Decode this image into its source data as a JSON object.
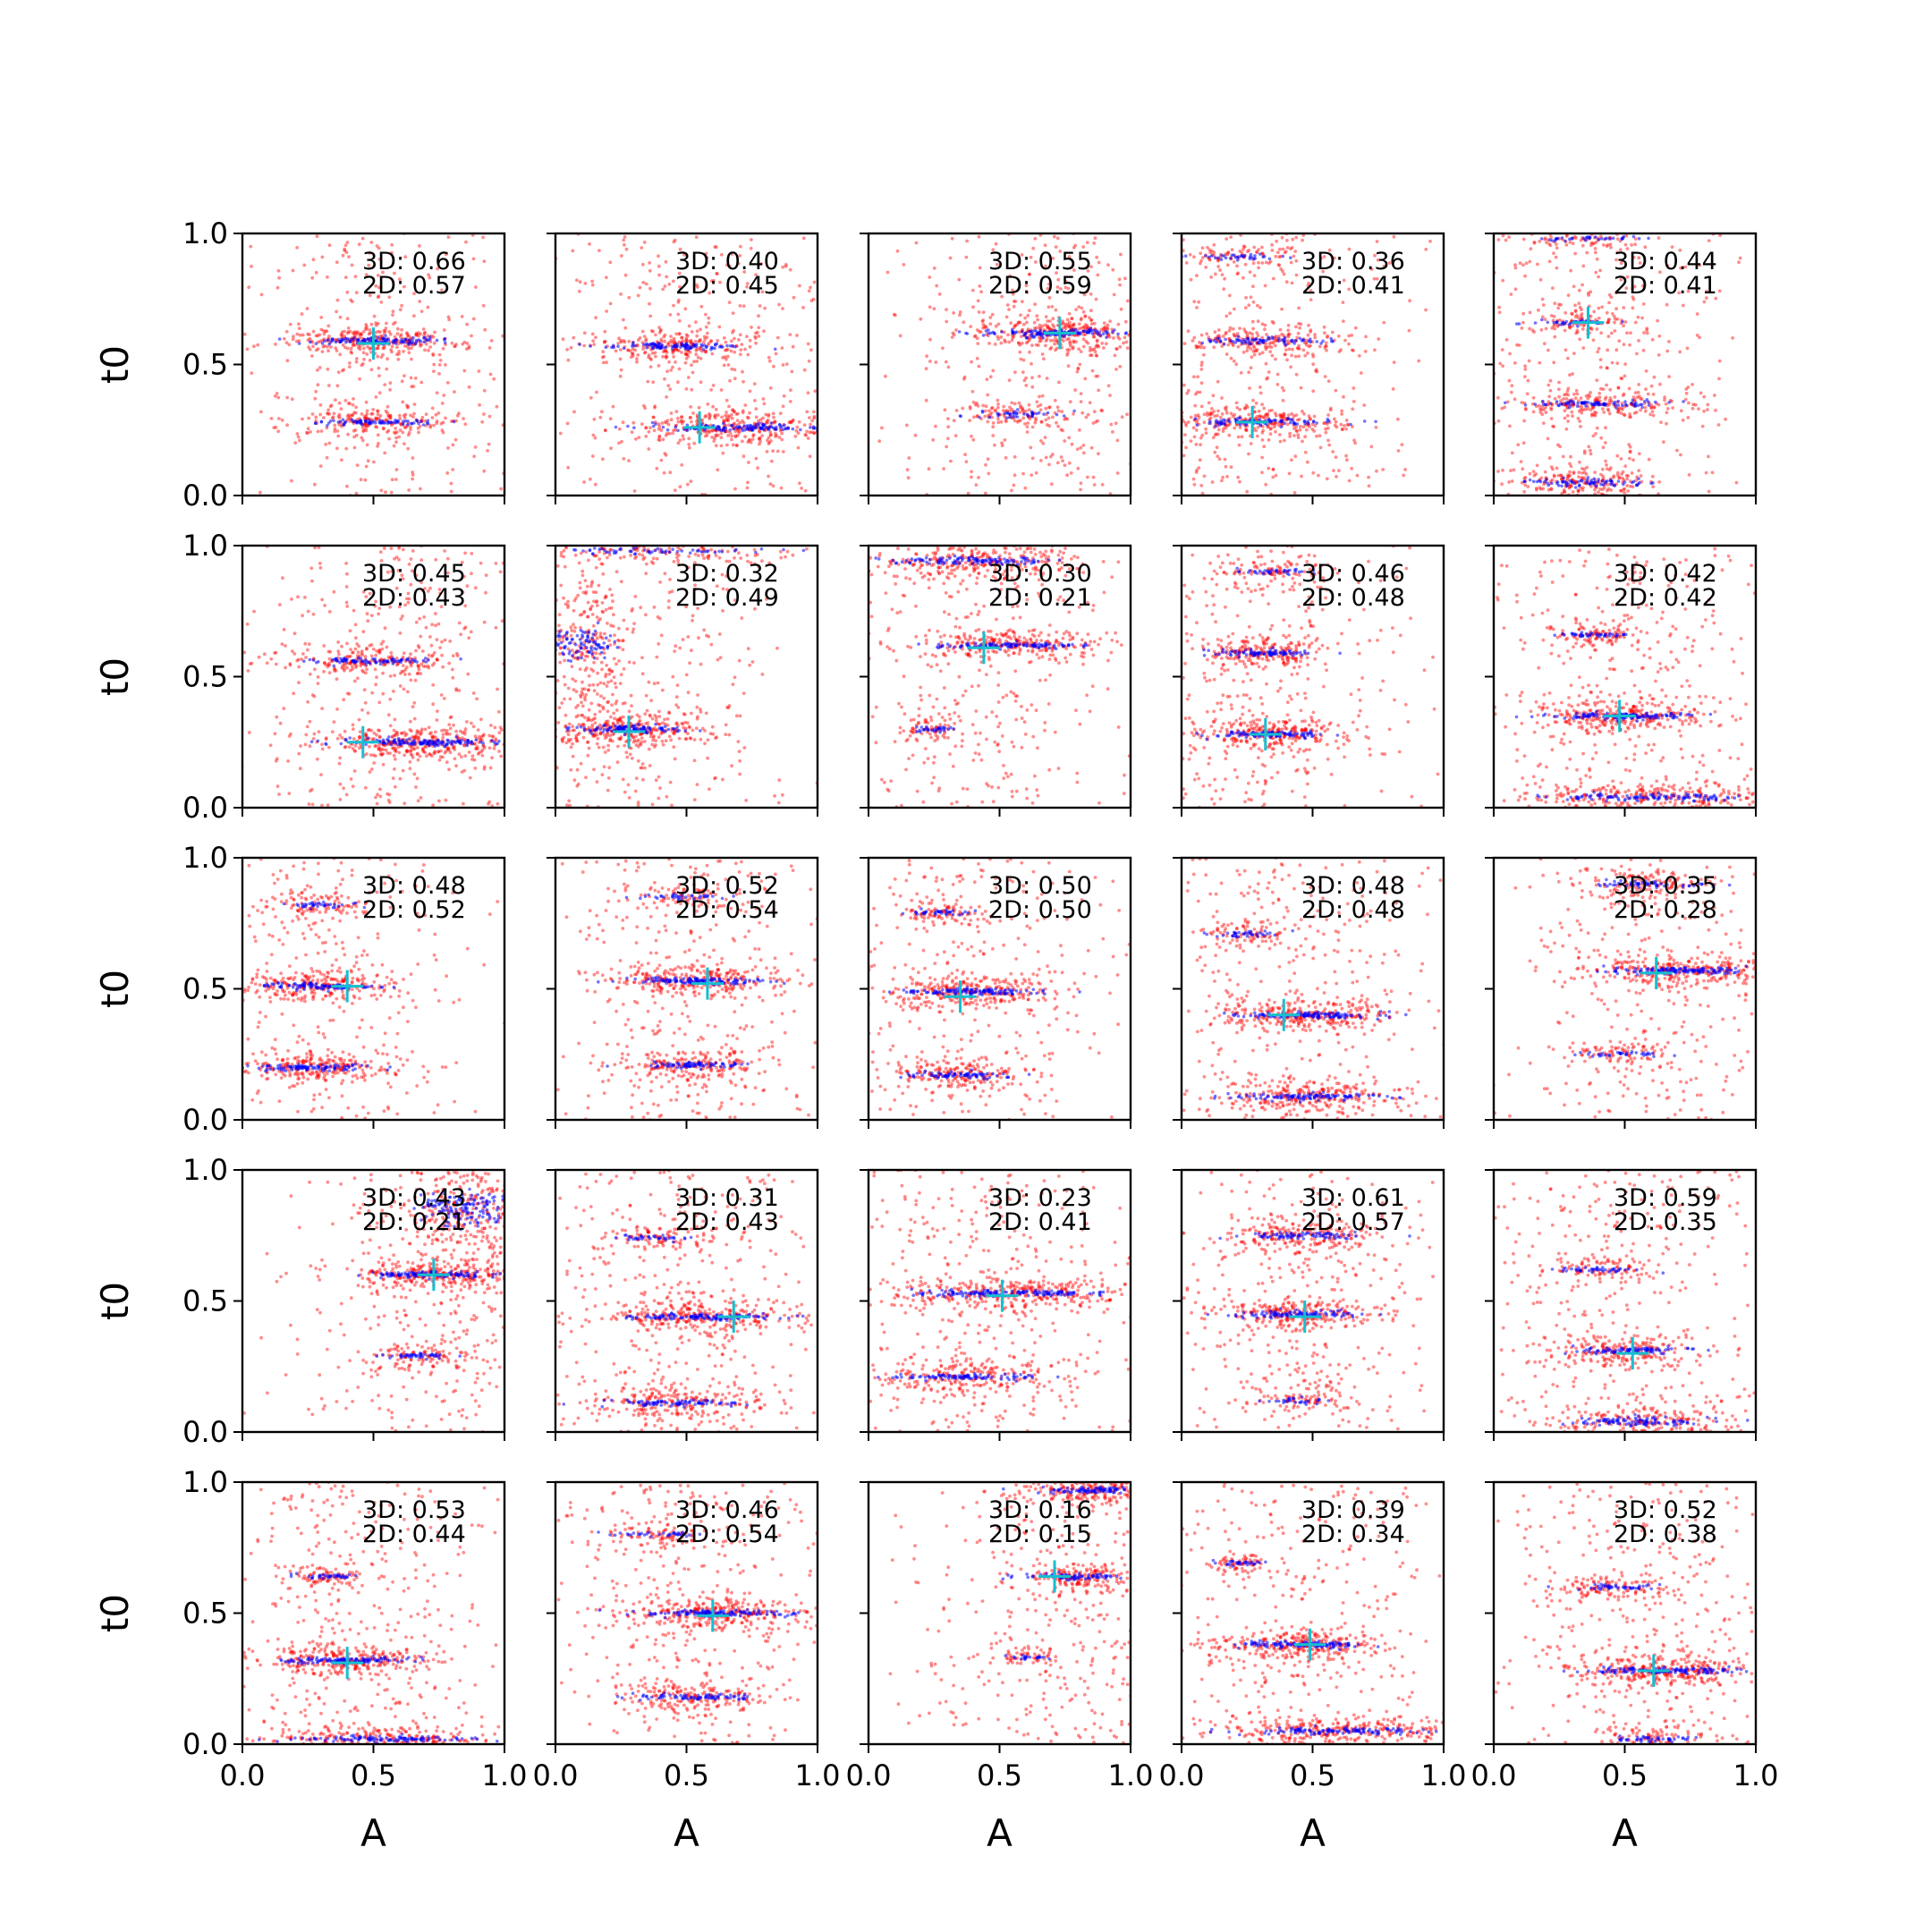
{
  "chart_data": {
    "type": "scatter",
    "layout": {
      "rows": 5,
      "cols": 5
    },
    "xlabel": "A",
    "ylabel": "t0",
    "xlim": [
      0.0,
      1.0
    ],
    "ylim": [
      0.0,
      1.0
    ],
    "xticks": [
      "0.0",
      "0.5",
      "1.0"
    ],
    "yticks": [
      "0.0",
      "0.5",
      "1.0"
    ],
    "grid": false,
    "colors": {
      "samples_3d": "#ff0000",
      "samples_2d": "#0000ff",
      "truth_marker": "#17becf"
    },
    "annotation_prefix": {
      "first": "3D: ",
      "second": "2D: "
    },
    "panels": [
      {
        "row": 0,
        "col": 0,
        "score_3d": "0.66",
        "score_2d": "0.57",
        "truth": {
          "A": 0.5,
          "t0": 0.58
        },
        "clusters": [
          {
            "A": 0.51,
            "t0": 0.59,
            "sA": 0.14,
            "sT": 0.014,
            "n": 160
          },
          {
            "A": 0.52,
            "t0": 0.28,
            "sA": 0.13,
            "sT": 0.014,
            "n": 110
          }
        ]
      },
      {
        "row": 0,
        "col": 1,
        "score_3d": "0.40",
        "score_2d": "0.45",
        "truth": {
          "A": 0.55,
          "t0": 0.26
        },
        "clusters": [
          {
            "A": 0.45,
            "t0": 0.57,
            "sA": 0.15,
            "sT": 0.014,
            "n": 140
          },
          {
            "A": 0.7,
            "t0": 0.26,
            "sA": 0.18,
            "sT": 0.014,
            "n": 180
          }
        ]
      },
      {
        "row": 0,
        "col": 2,
        "score_3d": "0.55",
        "score_2d": "0.59",
        "truth": {
          "A": 0.73,
          "t0": 0.62
        },
        "clusters": [
          {
            "A": 0.73,
            "t0": 0.62,
            "sA": 0.14,
            "sT": 0.016,
            "n": 180
          },
          {
            "A": 0.57,
            "t0": 0.31,
            "sA": 0.1,
            "sT": 0.014,
            "n": 60
          }
        ]
      },
      {
        "row": 0,
        "col": 3,
        "score_3d": "0.36",
        "score_2d": "0.41",
        "truth": {
          "A": 0.27,
          "t0": 0.28
        },
        "clusters": [
          {
            "A": 0.21,
            "t0": 0.91,
            "sA": 0.11,
            "sT": 0.012,
            "n": 50
          },
          {
            "A": 0.3,
            "t0": 0.59,
            "sA": 0.15,
            "sT": 0.014,
            "n": 110
          },
          {
            "A": 0.3,
            "t0": 0.28,
            "sA": 0.15,
            "sT": 0.014,
            "n": 140
          }
        ]
      },
      {
        "row": 0,
        "col": 4,
        "score_3d": "0.44",
        "score_2d": "0.41",
        "truth": {
          "A": 0.36,
          "t0": 0.66
        },
        "clusters": [
          {
            "A": 0.35,
            "t0": 0.98,
            "sA": 0.12,
            "sT": 0.012,
            "n": 50
          },
          {
            "A": 0.35,
            "t0": 0.66,
            "sA": 0.1,
            "sT": 0.012,
            "n": 60
          },
          {
            "A": 0.41,
            "t0": 0.35,
            "sA": 0.15,
            "sT": 0.014,
            "n": 120
          },
          {
            "A": 0.35,
            "t0": 0.05,
            "sA": 0.13,
            "sT": 0.016,
            "n": 110
          }
        ]
      },
      {
        "row": 1,
        "col": 0,
        "score_3d": "0.45",
        "score_2d": "0.43",
        "truth": {
          "A": 0.46,
          "t0": 0.25
        },
        "clusters": [
          {
            "A": 0.48,
            "t0": 0.56,
            "sA": 0.14,
            "sT": 0.014,
            "n": 120
          },
          {
            "A": 0.68,
            "t0": 0.25,
            "sA": 0.18,
            "sT": 0.014,
            "n": 200
          }
        ]
      },
      {
        "row": 1,
        "col": 1,
        "score_3d": "0.32",
        "score_2d": "0.49",
        "truth": {
          "A": 0.28,
          "t0": 0.29
        },
        "clusters": [
          {
            "A": 0.4,
            "t0": 0.98,
            "sA": 0.25,
            "sT": 0.012,
            "n": 90
          },
          {
            "A": 0.1,
            "t0": 0.62,
            "sA": 0.08,
            "sT": 0.08,
            "n": 140
          },
          {
            "A": 0.28,
            "t0": 0.3,
            "sA": 0.12,
            "sT": 0.016,
            "n": 160
          }
        ]
      },
      {
        "row": 1,
        "col": 2,
        "score_3d": "0.30",
        "score_2d": "0.21",
        "truth": {
          "A": 0.44,
          "t0": 0.61
        },
        "clusters": [
          {
            "A": 0.4,
            "t0": 0.94,
            "sA": 0.18,
            "sT": 0.016,
            "n": 160
          },
          {
            "A": 0.55,
            "t0": 0.62,
            "sA": 0.16,
            "sT": 0.012,
            "n": 150
          },
          {
            "A": 0.25,
            "t0": 0.3,
            "sA": 0.05,
            "sT": 0.012,
            "n": 40
          }
        ]
      },
      {
        "row": 1,
        "col": 3,
        "score_3d": "0.46",
        "score_2d": "0.48",
        "truth": {
          "A": 0.32,
          "t0": 0.28
        },
        "clusters": [
          {
            "A": 0.33,
            "t0": 0.9,
            "sA": 0.1,
            "sT": 0.012,
            "n": 50
          },
          {
            "A": 0.3,
            "t0": 0.59,
            "sA": 0.1,
            "sT": 0.014,
            "n": 120
          },
          {
            "A": 0.32,
            "t0": 0.28,
            "sA": 0.12,
            "sT": 0.014,
            "n": 140
          }
        ]
      },
      {
        "row": 1,
        "col": 4,
        "score_3d": "0.42",
        "score_2d": "0.42",
        "truth": {
          "A": 0.48,
          "t0": 0.35
        },
        "clusters": [
          {
            "A": 0.38,
            "t0": 0.66,
            "sA": 0.08,
            "sT": 0.012,
            "n": 60
          },
          {
            "A": 0.48,
            "t0": 0.35,
            "sA": 0.14,
            "sT": 0.014,
            "n": 170
          },
          {
            "A": 0.6,
            "t0": 0.04,
            "sA": 0.22,
            "sT": 0.014,
            "n": 160
          }
        ]
      },
      {
        "row": 2,
        "col": 0,
        "score_3d": "0.48",
        "score_2d": "0.52",
        "truth": {
          "A": 0.4,
          "t0": 0.51
        },
        "clusters": [
          {
            "A": 0.28,
            "t0": 0.82,
            "sA": 0.08,
            "sT": 0.012,
            "n": 50
          },
          {
            "A": 0.3,
            "t0": 0.51,
            "sA": 0.12,
            "sT": 0.014,
            "n": 140
          },
          {
            "A": 0.3,
            "t0": 0.2,
            "sA": 0.13,
            "sT": 0.014,
            "n": 140
          }
        ]
      },
      {
        "row": 2,
        "col": 1,
        "score_3d": "0.52",
        "score_2d": "0.54",
        "truth": {
          "A": 0.58,
          "t0": 0.52
        },
        "clusters": [
          {
            "A": 0.48,
            "t0": 0.85,
            "sA": 0.1,
            "sT": 0.012,
            "n": 50
          },
          {
            "A": 0.55,
            "t0": 0.53,
            "sA": 0.15,
            "sT": 0.014,
            "n": 170
          },
          {
            "A": 0.52,
            "t0": 0.21,
            "sA": 0.12,
            "sT": 0.014,
            "n": 110
          }
        ]
      },
      {
        "row": 2,
        "col": 2,
        "score_3d": "0.50",
        "score_2d": "0.50",
        "truth": {
          "A": 0.35,
          "t0": 0.47
        },
        "clusters": [
          {
            "A": 0.28,
            "t0": 0.79,
            "sA": 0.07,
            "sT": 0.012,
            "n": 50
          },
          {
            "A": 0.4,
            "t0": 0.49,
            "sA": 0.15,
            "sT": 0.014,
            "n": 170
          },
          {
            "A": 0.33,
            "t0": 0.17,
            "sA": 0.11,
            "sT": 0.014,
            "n": 110
          }
        ]
      },
      {
        "row": 2,
        "col": 3,
        "score_3d": "0.48",
        "score_2d": "0.48",
        "truth": {
          "A": 0.39,
          "t0": 0.4
        },
        "clusters": [
          {
            "A": 0.25,
            "t0": 0.71,
            "sA": 0.07,
            "sT": 0.012,
            "n": 50
          },
          {
            "A": 0.48,
            "t0": 0.4,
            "sA": 0.15,
            "sT": 0.014,
            "n": 170
          },
          {
            "A": 0.5,
            "t0": 0.09,
            "sA": 0.17,
            "sT": 0.016,
            "n": 150
          }
        ]
      },
      {
        "row": 2,
        "col": 4,
        "score_3d": "0.35",
        "score_2d": "0.28",
        "truth": {
          "A": 0.62,
          "t0": 0.56
        },
        "clusters": [
          {
            "A": 0.6,
            "t0": 0.9,
            "sA": 0.12,
            "sT": 0.014,
            "n": 80
          },
          {
            "A": 0.72,
            "t0": 0.57,
            "sA": 0.16,
            "sT": 0.014,
            "n": 180
          },
          {
            "A": 0.5,
            "t0": 0.25,
            "sA": 0.09,
            "sT": 0.012,
            "n": 50
          }
        ]
      },
      {
        "row": 3,
        "col": 0,
        "score_3d": "0.43",
        "score_2d": "0.21",
        "truth": {
          "A": 0.73,
          "t0": 0.6
        },
        "clusters": [
          {
            "A": 0.85,
            "t0": 0.85,
            "sA": 0.1,
            "sT": 0.08,
            "n": 200
          },
          {
            "A": 0.72,
            "t0": 0.6,
            "sA": 0.13,
            "sT": 0.014,
            "n": 160
          },
          {
            "A": 0.68,
            "t0": 0.29,
            "sA": 0.09,
            "sT": 0.012,
            "n": 60
          }
        ]
      },
      {
        "row": 3,
        "col": 1,
        "score_3d": "0.31",
        "score_2d": "0.43",
        "truth": {
          "A": 0.68,
          "t0": 0.44
        },
        "clusters": [
          {
            "A": 0.37,
            "t0": 0.74,
            "sA": 0.08,
            "sT": 0.012,
            "n": 50
          },
          {
            "A": 0.55,
            "t0": 0.44,
            "sA": 0.18,
            "sT": 0.014,
            "n": 170
          },
          {
            "A": 0.45,
            "t0": 0.11,
            "sA": 0.15,
            "sT": 0.014,
            "n": 120
          }
        ]
      },
      {
        "row": 3,
        "col": 2,
        "score_3d": "0.23",
        "score_2d": "0.41",
        "truth": {
          "A": 0.51,
          "t0": 0.52
        },
        "clusters": [
          {
            "A": 0.55,
            "t0": 0.53,
            "sA": 0.22,
            "sT": 0.014,
            "n": 200
          },
          {
            "A": 0.35,
            "t0": 0.21,
            "sA": 0.14,
            "sT": 0.014,
            "n": 130
          }
        ]
      },
      {
        "row": 3,
        "col": 3,
        "score_3d": "0.61",
        "score_2d": "0.57",
        "truth": {
          "A": 0.47,
          "t0": 0.44
        },
        "clusters": [
          {
            "A": 0.45,
            "t0": 0.75,
            "sA": 0.12,
            "sT": 0.014,
            "n": 110
          },
          {
            "A": 0.45,
            "t0": 0.45,
            "sA": 0.14,
            "sT": 0.014,
            "n": 140
          },
          {
            "A": 0.45,
            "t0": 0.12,
            "sA": 0.07,
            "sT": 0.012,
            "n": 40
          }
        ]
      },
      {
        "row": 3,
        "col": 4,
        "score_3d": "0.59",
        "score_2d": "0.35",
        "truth": {
          "A": 0.53,
          "t0": 0.3
        },
        "clusters": [
          {
            "A": 0.4,
            "t0": 0.62,
            "sA": 0.1,
            "sT": 0.012,
            "n": 60
          },
          {
            "A": 0.5,
            "t0": 0.31,
            "sA": 0.12,
            "sT": 0.014,
            "n": 120
          },
          {
            "A": 0.55,
            "t0": 0.04,
            "sA": 0.16,
            "sT": 0.02,
            "n": 140
          }
        ]
      },
      {
        "row": 4,
        "col": 0,
        "score_3d": "0.53",
        "score_2d": "0.44",
        "truth": {
          "A": 0.4,
          "t0": 0.31
        },
        "clusters": [
          {
            "A": 0.32,
            "t0": 0.64,
            "sA": 0.07,
            "sT": 0.012,
            "n": 50
          },
          {
            "A": 0.4,
            "t0": 0.32,
            "sA": 0.15,
            "sT": 0.014,
            "n": 160
          },
          {
            "A": 0.55,
            "t0": 0.02,
            "sA": 0.2,
            "sT": 0.012,
            "n": 150
          }
        ]
      },
      {
        "row": 4,
        "col": 1,
        "score_3d": "0.46",
        "score_2d": "0.54",
        "truth": {
          "A": 0.6,
          "t0": 0.49
        },
        "clusters": [
          {
            "A": 0.4,
            "t0": 0.8,
            "sA": 0.1,
            "sT": 0.012,
            "n": 50
          },
          {
            "A": 0.6,
            "t0": 0.5,
            "sA": 0.16,
            "sT": 0.014,
            "n": 180
          },
          {
            "A": 0.5,
            "t0": 0.18,
            "sA": 0.12,
            "sT": 0.014,
            "n": 110
          }
        ]
      },
      {
        "row": 4,
        "col": 2,
        "score_3d": "0.16",
        "score_2d": "0.15",
        "truth": {
          "A": 0.71,
          "t0": 0.64
        },
        "clusters": [
          {
            "A": 0.85,
            "t0": 0.97,
            "sA": 0.1,
            "sT": 0.014,
            "n": 130
          },
          {
            "A": 0.8,
            "t0": 0.64,
            "sA": 0.1,
            "sT": 0.012,
            "n": 100
          },
          {
            "A": 0.62,
            "t0": 0.33,
            "sA": 0.05,
            "sT": 0.008,
            "n": 30
          }
        ]
      },
      {
        "row": 4,
        "col": 3,
        "score_3d": "0.39",
        "score_2d": "0.34",
        "truth": {
          "A": 0.49,
          "t0": 0.38
        },
        "clusters": [
          {
            "A": 0.22,
            "t0": 0.69,
            "sA": 0.05,
            "sT": 0.01,
            "n": 40
          },
          {
            "A": 0.45,
            "t0": 0.38,
            "sA": 0.15,
            "sT": 0.014,
            "n": 170
          },
          {
            "A": 0.6,
            "t0": 0.05,
            "sA": 0.2,
            "sT": 0.014,
            "n": 170
          }
        ]
      },
      {
        "row": 4,
        "col": 4,
        "score_3d": "0.52",
        "score_2d": "0.38",
        "truth": {
          "A": 0.61,
          "t0": 0.28
        },
        "clusters": [
          {
            "A": 0.45,
            "t0": 0.6,
            "sA": 0.1,
            "sT": 0.012,
            "n": 60
          },
          {
            "A": 0.65,
            "t0": 0.28,
            "sA": 0.16,
            "sT": 0.014,
            "n": 180
          },
          {
            "A": 0.62,
            "t0": 0.02,
            "sA": 0.1,
            "sT": 0.014,
            "n": 60
          }
        ]
      }
    ]
  }
}
